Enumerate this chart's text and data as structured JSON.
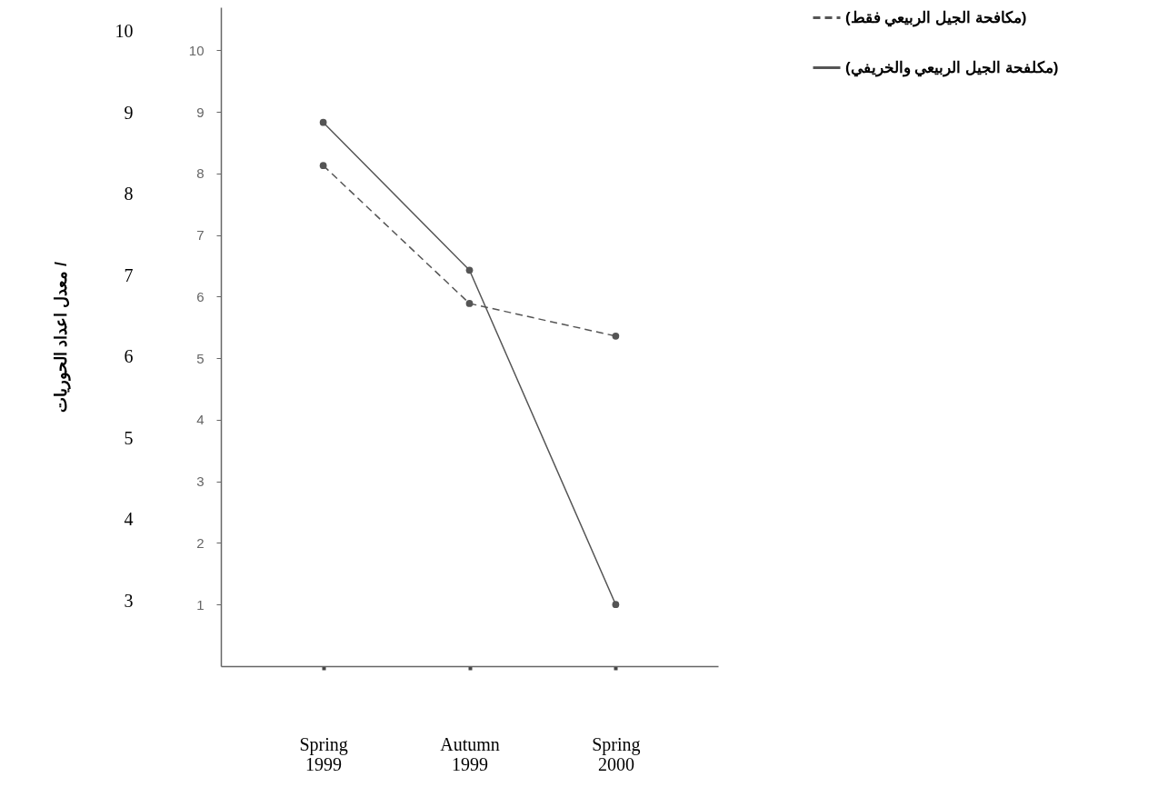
{
  "chart_data": {
    "type": "line",
    "y2label": "معدل اعداد الحوريات /",
    "categories": [
      "Spring 1999",
      "Autumn 1999",
      "Spring 2000"
    ],
    "ylim": [
      0,
      10.7
    ],
    "yticks": [
      1,
      2,
      3,
      4,
      5,
      6,
      7,
      8,
      9,
      10
    ],
    "y2lim": [
      2.2,
      10.3
    ],
    "y2ticks": [
      3,
      4,
      5,
      6,
      7,
      8,
      9,
      10
    ],
    "series": [
      {
        "name": "(مكافحة الجيل الربيعي فقط)",
        "color": "#555555",
        "line_style": "dashed",
        "values": [
          8.13,
          5.89,
          5.36
        ]
      },
      {
        "name": "(مكلفحة الجيل الربيعي والخريفي)",
        "color": "#555555",
        "line_style": "solid",
        "values": [
          8.83,
          6.43,
          1.0
        ]
      }
    ],
    "marker": "circle",
    "grid": false,
    "legend": "top right"
  }
}
